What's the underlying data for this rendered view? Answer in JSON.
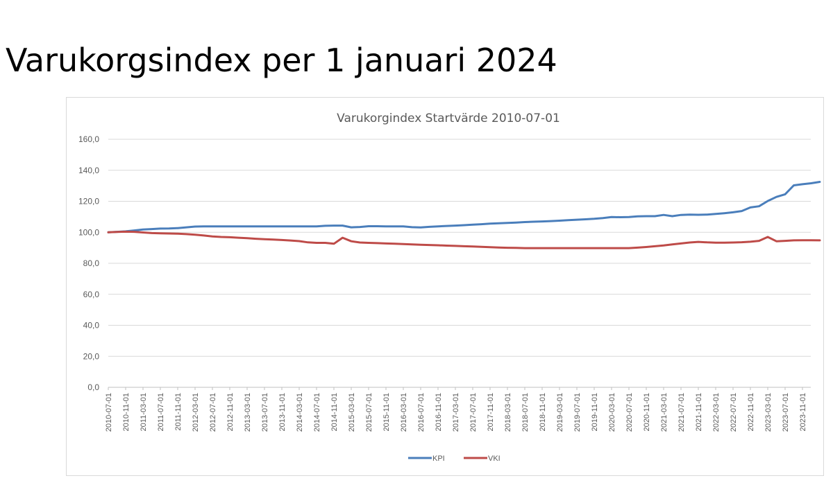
{
  "slide": {
    "title": "Varukorgsindex per 1 januari 2024"
  },
  "chart_data": {
    "type": "line",
    "title": "Varukorgindex Startvärde 2010-07-01",
    "xlabel": "",
    "ylabel": "",
    "ylim": [
      0,
      160
    ],
    "yticks": [
      "0,0",
      "20,0",
      "40,0",
      "60,0",
      "80,0",
      "100,0",
      "120,0",
      "140,0",
      "160,0"
    ],
    "grid": true,
    "legend_position": "bottom",
    "categories": [
      "2010-07-01",
      "2010-11-01",
      "2011-03-01",
      "2011-07-01",
      "2011-11-01",
      "2012-03-01",
      "2012-07-01",
      "2012-11-01",
      "2013-03-01",
      "2013-07-01",
      "2013-11-01",
      "2014-03-01",
      "2014-07-01",
      "2014-11-01",
      "2015-03-01",
      "2015-07-01",
      "2015-11-01",
      "2016-03-01",
      "2016-07-01",
      "2016-11-01",
      "2017-03-01",
      "2017-07-01",
      "2017-11-01",
      "2018-03-01",
      "2018-07-01",
      "2018-11-01",
      "2019-03-01",
      "2019-07-01",
      "2019-11-01",
      "2020-03-01",
      "2020-07-01",
      "2020-11-01",
      "2021-03-01",
      "2021-07-01",
      "2021-11-01",
      "2022-03-01",
      "2022-07-01",
      "2022-11-01",
      "2023-03-01",
      "2023-07-01",
      "2023-11-01"
    ],
    "series": [
      {
        "name": "KPI",
        "color": "#4a7ebb",
        "x": [
          0,
          1,
          2,
          3,
          4,
          5,
          6,
          7,
          8,
          9,
          10,
          11,
          12,
          13,
          14,
          15,
          16,
          17,
          18,
          19,
          20,
          21,
          22,
          23,
          24,
          25,
          26,
          27,
          28,
          29,
          30,
          31,
          32,
          33,
          34,
          35,
          36,
          37,
          38,
          39,
          40,
          41,
          42,
          43,
          44,
          45,
          46,
          47,
          48,
          49,
          50,
          51,
          52,
          53,
          54,
          55,
          56,
          57,
          58,
          59,
          60,
          61,
          62,
          63,
          64,
          65,
          66,
          67,
          68,
          69,
          70,
          71,
          72,
          73,
          74,
          75,
          76,
          77,
          78,
          79,
          80,
          81,
          82
        ],
        "values": [
          100,
          100.3,
          100.6,
          101.2,
          101.8,
          102.1,
          102.4,
          102.5,
          102.7,
          103.2,
          103.7,
          103.8,
          103.8,
          103.8,
          103.8,
          103.8,
          103.8,
          103.8,
          103.8,
          103.8,
          103.8,
          103.8,
          103.8,
          103.8,
          103.8,
          104.2,
          104.3,
          104.3,
          103.2,
          103.4,
          103.9,
          103.9,
          103.8,
          103.8,
          103.8,
          103.3,
          103.1,
          103.5,
          103.8,
          104.1,
          104.3,
          104.6,
          104.9,
          105.2,
          105.6,
          105.8,
          106,
          106.3,
          106.6,
          106.8,
          107,
          107.2,
          107.5,
          107.8,
          108.1,
          108.4,
          108.7,
          109.2,
          109.8,
          109.7,
          109.8,
          110.3,
          110.4,
          110.4,
          111.2,
          110.4,
          111.2,
          111.4,
          111.3,
          111.4,
          111.8,
          112.3,
          112.9,
          113.7,
          116,
          116.8,
          120.2,
          122.8,
          124.5,
          130.3,
          131,
          131.6,
          132.5
        ]
      },
      {
        "name": "VKI",
        "color": "#be4b48",
        "x": [
          0,
          1,
          2,
          3,
          4,
          5,
          6,
          7,
          8,
          9,
          10,
          11,
          12,
          13,
          14,
          15,
          16,
          17,
          18,
          19,
          20,
          21,
          22,
          23,
          24,
          25,
          26,
          27,
          28,
          29,
          30,
          31,
          32,
          33,
          34,
          35,
          36,
          37,
          38,
          39,
          40,
          41,
          42,
          43,
          44,
          45,
          46,
          47,
          48,
          49,
          50,
          51,
          52,
          53,
          54,
          55,
          56,
          57,
          58,
          59,
          60,
          61,
          62,
          63,
          64,
          65,
          66,
          67,
          68,
          69,
          70,
          71,
          72,
          73,
          74,
          75,
          76,
          77,
          78,
          79,
          80,
          81,
          82
        ],
        "values": [
          100,
          100.2,
          100.4,
          100.3,
          99.9,
          99.5,
          99.3,
          99.2,
          99.1,
          98.8,
          98.4,
          97.9,
          97.3,
          97,
          96.8,
          96.5,
          96.2,
          95.8,
          95.5,
          95.3,
          95,
          94.7,
          94.3,
          93.5,
          93.2,
          93.2,
          92.6,
          96.5,
          94.2,
          93.4,
          93.2,
          93,
          92.8,
          92.6,
          92.4,
          92.2,
          92,
          91.8,
          91.6,
          91.4,
          91.2,
          91,
          90.8,
          90.6,
          90.4,
          90.2,
          90,
          89.9,
          89.8,
          89.8,
          89.8,
          89.8,
          89.8,
          89.8,
          89.8,
          89.8,
          89.8,
          89.8,
          89.8,
          89.8,
          89.8,
          90.1,
          90.5,
          91,
          91.5,
          92.2,
          92.8,
          93.4,
          93.8,
          93.5,
          93.3,
          93.3,
          93.4,
          93.6,
          93.9,
          94.5,
          97,
          94.2,
          94.5,
          94.8,
          94.9,
          94.9,
          94.8
        ]
      }
    ]
  }
}
